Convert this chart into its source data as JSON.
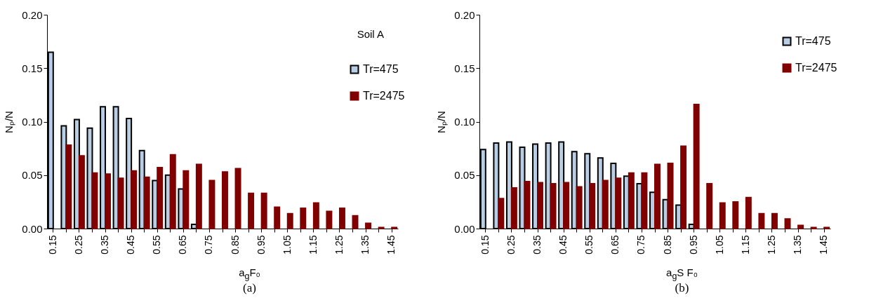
{
  "chart_data": [
    {
      "type": "bar",
      "categories": [
        "0.15",
        null,
        "0.25",
        null,
        "0.35",
        null,
        "0.45",
        null,
        "0.55",
        null,
        "0.65",
        null,
        "0.75",
        null,
        "0.85",
        null,
        "0.95",
        null,
        "1.05",
        null,
        "1.15",
        null,
        "1.25",
        null,
        "1.35",
        null,
        "1.45"
      ],
      "xlabel": "a$_{g}$F₀",
      "ylabel": "Nₚ/N",
      "annotations": [
        "Soil A",
        "(a)"
      ],
      "legend": "top right",
      "ylim": [
        0,
        0.2
      ],
      "yticks": [
        {
          "value": 0,
          "label": "0.00"
        },
        {
          "value": 0.05,
          "label": "0.05"
        },
        {
          "value": 0.1,
          "label": "0.10"
        },
        {
          "value": 0.15,
          "label": "0.15"
        },
        {
          "value": 0.2,
          "label": "0.20"
        }
      ],
      "series": [
        {
          "name": "Tr=475",
          "color": "#b9cde5",
          "values": [
            0.165,
            0.096,
            0.102,
            0.094,
            0.114,
            0.114,
            0.103,
            0.073,
            0.045,
            0.05,
            0.037,
            0.004,
            null,
            null,
            null,
            null,
            null,
            null,
            null,
            null,
            null,
            null,
            null,
            null,
            null,
            null,
            null
          ]
        },
        {
          "name": "Tr=2475",
          "color": "#800000",
          "values": [
            null,
            0.078,
            0.068,
            0.052,
            0.051,
            0.047,
            0.054,
            0.048,
            0.057,
            0.069,
            0.054,
            0.06,
            0.045,
            0.053,
            0.056,
            0.033,
            0.033,
            0.02,
            0.014,
            0.019,
            0.024,
            0.016,
            0.019,
            0.012,
            0.005,
            0.001,
            0.001
          ]
        }
      ]
    },
    {
      "type": "bar",
      "categories": [
        "0.15",
        null,
        "0.25",
        null,
        "0.35",
        null,
        "0.45",
        null,
        "0.55",
        null,
        "0.65",
        null,
        "0.75",
        null,
        "0.85",
        null,
        "0.95",
        null,
        "1.05",
        null,
        "1.15",
        null,
        "1.25",
        null,
        "1.35",
        null,
        "1.45"
      ],
      "xlabel": "a$_{g}$S F₀",
      "ylabel": "Nₚ/N",
      "annotations": [
        "(b)"
      ],
      "legend": "top right",
      "ylim": [
        0,
        0.2
      ],
      "yticks": [
        {
          "value": 0,
          "label": "0.00"
        },
        {
          "value": 0.05,
          "label": "0.05"
        },
        {
          "value": 0.1,
          "label": "0.10"
        },
        {
          "value": 0.15,
          "label": "0.15"
        },
        {
          "value": 0.2,
          "label": "0.20"
        }
      ],
      "series": [
        {
          "name": "Tr=475",
          "color": "#b9cde5",
          "values": [
            0.074,
            0.08,
            0.081,
            0.076,
            0.079,
            0.08,
            0.081,
            0.072,
            0.07,
            0.066,
            0.061,
            0.049,
            0.042,
            0.034,
            0.027,
            0.022,
            0.004,
            null,
            null,
            null,
            null,
            null,
            null,
            null,
            null,
            null,
            null
          ]
        },
        {
          "name": "Tr=2475",
          "color": "#800000",
          "values": [
            null,
            0.028,
            0.038,
            0.044,
            0.043,
            0.042,
            0.043,
            0.039,
            0.042,
            0.045,
            0.047,
            0.052,
            0.052,
            0.06,
            0.061,
            0.077,
            0.116,
            0.042,
            0.024,
            0.025,
            0.029,
            0.014,
            0.014,
            0.009,
            0.003,
            0.001,
            0.001
          ]
        }
      ]
    }
  ]
}
